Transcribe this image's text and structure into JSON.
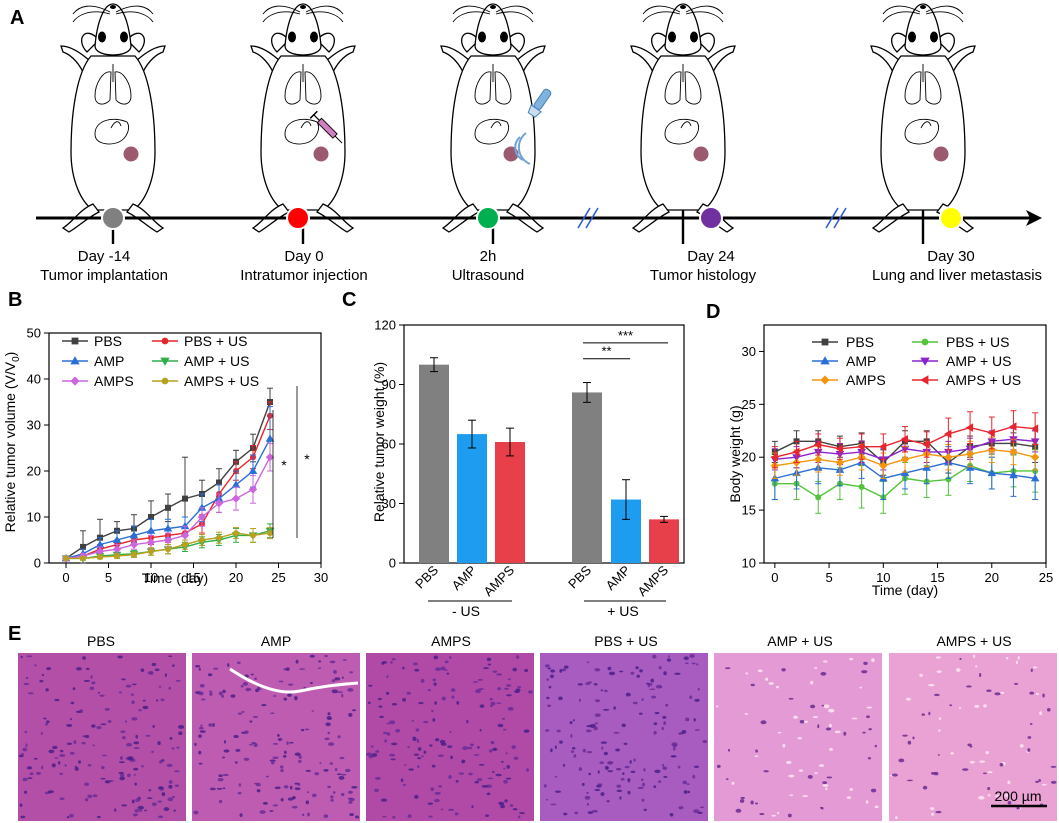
{
  "panels": {
    "A": "A",
    "B": "B",
    "C": "C",
    "D": "D",
    "E": "E"
  },
  "timeline": {
    "events": [
      {
        "day": "Day -14",
        "desc": "Tumor implantation",
        "color": "#808080",
        "extra": "none"
      },
      {
        "day": "Day 0",
        "desc": "Intratumor injection",
        "color": "#ff0000",
        "extra": "syringe"
      },
      {
        "day": "2h",
        "desc": "Ultrasound",
        "color": "#00b050",
        "extra": "ultrasound-probe"
      },
      {
        "day": "Day 24",
        "desc": "Tumor histology",
        "color": "#7030a0",
        "extra": "none"
      },
      {
        "day": "Day 30",
        "desc": "Lung and liver metastasis",
        "color": "#ffff00",
        "extra": "none"
      }
    ],
    "tumor_color": "#9b5a6e",
    "axis_break_color": "#2f5fd0"
  },
  "chart_data": [
    {
      "panel": "B",
      "type": "line",
      "xlabel": "Time (day)",
      "ylabel": "Relative tumor volume (V/V",
      "ylabel_sub": "0",
      "ylabel_close": ")",
      "xlim": [
        -2,
        30
      ],
      "ylim": [
        0,
        50
      ],
      "xticks": [
        0,
        5,
        10,
        15,
        20,
        25,
        30
      ],
      "yticks": [
        0,
        10,
        20,
        30,
        40,
        50
      ],
      "x": [
        0,
        2,
        4,
        6,
        8,
        10,
        12,
        14,
        16,
        18,
        20,
        22,
        24
      ],
      "series": [
        {
          "name": "PBS",
          "color": "#404040",
          "marker": "square",
          "values": [
            1,
            3.5,
            5.5,
            7,
            7.5,
            10,
            12,
            14,
            15,
            17.5,
            22,
            25,
            35
          ],
          "errors": [
            0.5,
            3.5,
            4,
            2,
            3,
            3.5,
            3,
            9,
            3,
            3,
            2.5,
            3,
            3
          ]
        },
        {
          "name": "PBS + US",
          "color": "#e8252d",
          "marker": "circle",
          "values": [
            1,
            1.5,
            3,
            4,
            5,
            5.5,
            6,
            6.5,
            8.5,
            15,
            20,
            23,
            32
          ],
          "errors": [
            0.5,
            0.5,
            1,
            1,
            1,
            1.5,
            1.5,
            1.5,
            2,
            2,
            2,
            2.5,
            3
          ]
        },
        {
          "name": "AMP",
          "color": "#2a6fd6",
          "marker": "triangle-up",
          "values": [
            1,
            2,
            4,
            5,
            6,
            7,
            7.5,
            8,
            12,
            14,
            17,
            20,
            27
          ],
          "errors": [
            0.5,
            1,
            1.5,
            2,
            2,
            2.5,
            2,
            2,
            3,
            3,
            3,
            3.5,
            7
          ]
        },
        {
          "name": "AMP + US",
          "color": "#2fae4a",
          "marker": "triangle-down",
          "values": [
            1,
            1,
            1.5,
            1.8,
            2,
            2.5,
            3,
            3.5,
            4.5,
            5,
            6,
            6,
            7
          ],
          "errors": [
            0.3,
            0.4,
            0.5,
            0.5,
            0.7,
            0.8,
            1,
            1,
            1.2,
            1.2,
            1.5,
            1.5,
            1.5
          ]
        },
        {
          "name": "AMPS",
          "color": "#cc66dd",
          "marker": "diamond",
          "values": [
            1,
            1.5,
            2.5,
            3,
            4,
            4.5,
            5,
            6,
            10,
            13,
            14,
            16,
            23
          ],
          "errors": [
            0.5,
            0.5,
            1,
            1,
            1,
            1.5,
            1.5,
            2,
            2,
            2,
            2.5,
            3,
            3
          ]
        },
        {
          "name": "AMPS + US",
          "color": "#b8a020",
          "marker": "hexagon",
          "values": [
            1,
            1,
            1.3,
            1.5,
            1.8,
            2.5,
            3,
            4,
            5,
            5.5,
            6.5,
            6,
            6.5
          ],
          "errors": [
            0.3,
            0.3,
            0.4,
            0.5,
            0.6,
            0.8,
            1,
            1,
            1.2,
            1.2,
            1.2,
            1.5,
            1.2
          ]
        }
      ],
      "significance": [
        "*",
        "*"
      ]
    },
    {
      "panel": "C",
      "type": "bar",
      "ylabel": "Relative tumor weight (%)",
      "ylim": [
        0,
        120
      ],
      "yticks": [
        0,
        30,
        60,
        90,
        120
      ],
      "categories": [
        "PBS",
        "AMP",
        "AMPS",
        "PBS",
        "AMP",
        "AMPS"
      ],
      "values": [
        100,
        65,
        61,
        86,
        32,
        22
      ],
      "errors": [
        3.5,
        7,
        7,
        5,
        10,
        1.5
      ],
      "colors": [
        "#808080",
        "#1e9cf0",
        "#e8404a",
        "#808080",
        "#1e9cf0",
        "#e8404a"
      ],
      "groups": [
        "- US",
        "+ US"
      ],
      "significance": [
        {
          "label": "**",
          "from": 3,
          "to": 4,
          "level": 103
        },
        {
          "label": "***",
          "from": 3,
          "to": 5,
          "level": 111
        }
      ]
    },
    {
      "panel": "D",
      "type": "line",
      "xlabel": "Time (day)",
      "ylabel": "Body weight (g)",
      "xlim": [
        -1,
        25
      ],
      "ylim": [
        10,
        32.5
      ],
      "xticks": [
        0,
        5,
        10,
        15,
        20,
        25
      ],
      "yticks": [
        10,
        15,
        20,
        25,
        30
      ],
      "x": [
        0,
        2,
        4,
        6,
        8,
        10,
        12,
        14,
        16,
        18,
        20,
        22,
        24
      ],
      "series": [
        {
          "name": "PBS",
          "color": "#404040",
          "marker": "square",
          "values": [
            20.5,
            21.5,
            21.5,
            21,
            21.3,
            19.5,
            21.5,
            21.5,
            19.5,
            21,
            21.3,
            21.3,
            21
          ],
          "errors": [
            1,
            1,
            1,
            1,
            1,
            1.2,
            1,
            1,
            1,
            1,
            1,
            1,
            1.5
          ]
        },
        {
          "name": "PBS + US",
          "color": "#52c33a",
          "marker": "circle",
          "values": [
            17.5,
            17.5,
            16.2,
            17.5,
            17.2,
            16.2,
            18,
            17.7,
            17.9,
            19.2,
            18.5,
            18.7,
            18.7
          ],
          "errors": [
            1.5,
            1.5,
            1.5,
            1.5,
            2,
            1.5,
            1.5,
            1.5,
            1.5,
            1.5,
            1.5,
            1.5,
            2
          ]
        },
        {
          "name": "AMP",
          "color": "#2a6fd6",
          "marker": "triangle-up",
          "values": [
            18,
            18.5,
            19,
            18.8,
            19.5,
            18,
            18.5,
            19,
            19.5,
            19,
            18.5,
            18.3,
            18
          ],
          "errors": [
            2,
            1.5,
            1.5,
            1.5,
            1.5,
            2,
            1.5,
            1.5,
            1.5,
            1.5,
            1.5,
            2,
            2
          ]
        },
        {
          "name": "AMP + US",
          "color": "#8b22d0",
          "marker": "triangle-down",
          "values": [
            19.8,
            20,
            20.5,
            20.3,
            20.5,
            19.8,
            20.8,
            20.5,
            20.5,
            20.8,
            21.5,
            21.7,
            21.5
          ],
          "errors": [
            1,
            1,
            1,
            1,
            1,
            1,
            1,
            1,
            1,
            1,
            1,
            1,
            1
          ]
        },
        {
          "name": "AMPS",
          "color": "#f3950f",
          "marker": "diamond",
          "values": [
            19.2,
            19.5,
            19.8,
            19.5,
            20,
            19.2,
            19.8,
            20.3,
            20,
            20.3,
            20.7,
            20.5,
            20
          ],
          "errors": [
            1.2,
            1.2,
            1.2,
            1.2,
            1.2,
            1.2,
            1.2,
            1.2,
            1.2,
            1.2,
            1.2,
            1.2,
            1.2
          ]
        },
        {
          "name": "AMPS + US",
          "color": "#e8252d",
          "marker": "tri-left",
          "values": [
            20,
            20.5,
            21.2,
            20.8,
            21,
            21,
            21.7,
            21.2,
            22.2,
            22.8,
            22.3,
            22.9,
            22.7
          ],
          "errors": [
            1,
            1,
            1,
            1,
            1.2,
            1.2,
            1.2,
            1.2,
            1.5,
            1.5,
            1.5,
            1.5,
            1.5
          ]
        }
      ]
    }
  ],
  "histology": {
    "labels": [
      "PBS",
      "AMP",
      "AMPS",
      "PBS + US",
      "AMP + US",
      "AMPS + US"
    ],
    "scale_bar": "200 µm",
    "base_colors": [
      "#b44fa8",
      "#bd5cb0",
      "#b04aa6",
      "#a85cc0",
      "#e49ad4",
      "#eaa1d3"
    ]
  }
}
